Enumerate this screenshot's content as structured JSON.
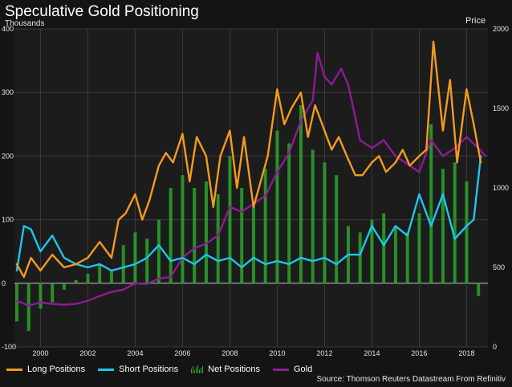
{
  "title": "Speculative Gold Positioning",
  "y_left_unit": "Thousands",
  "y_right_unit": "Price",
  "source": "Source: Thomson Reuters Datastream From Refinitiv",
  "colors": {
    "background": "#141414",
    "plot_bg": "#1c1c1c",
    "grid": "#3a3a3a",
    "long": "#f39b1f",
    "short": "#1fc6ee",
    "net": "#2aa52a",
    "gold": "#8e1b95"
  },
  "legend": {
    "long": "Long Positions",
    "short": "Short Positions",
    "net": "Net Positions",
    "gold": "Gold"
  },
  "chart_data": {
    "type": "line",
    "title": "Speculative Gold Positioning",
    "x_ticks": [
      "2000",
      "2002",
      "2004",
      "2006",
      "2008",
      "2010",
      "2012",
      "2014",
      "2016",
      "2018"
    ],
    "x_range": [
      1998.9,
      2018.9
    ],
    "y_left": {
      "label": "Thousands",
      "range": [
        -100,
        400
      ],
      "ticks": [
        "-100",
        "0",
        "100",
        "200",
        "300",
        "400"
      ]
    },
    "y_right": {
      "label": "Price",
      "range": [
        0,
        2000
      ],
      "ticks": [
        "0",
        "500",
        "1000",
        "1500",
        "2000"
      ]
    },
    "grid": true,
    "legend_position": "bottom",
    "series": [
      {
        "name": "Long Positions",
        "axis": "left",
        "type": "line",
        "x": [
          1999.0,
          1999.3,
          1999.6,
          2000.0,
          2000.5,
          2001.0,
          2001.5,
          2002.0,
          2002.5,
          2003.0,
          2003.3,
          2003.6,
          2004.0,
          2004.3,
          2004.6,
          2005.0,
          2005.3,
          2005.6,
          2006.0,
          2006.3,
          2006.6,
          2007.0,
          2007.3,
          2007.6,
          2008.0,
          2008.3,
          2008.6,
          2009.0,
          2009.3,
          2009.6,
          2010.0,
          2010.3,
          2010.6,
          2011.0,
          2011.3,
          2011.6,
          2012.0,
          2012.3,
          2012.6,
          2013.0,
          2013.3,
          2013.6,
          2014.0,
          2014.3,
          2014.6,
          2015.0,
          2015.3,
          2015.6,
          2016.0,
          2016.3,
          2016.6,
          2017.0,
          2017.3,
          2017.6,
          2018.0,
          2018.3,
          2018.6
        ],
        "y": [
          30,
          10,
          40,
          20,
          45,
          25,
          30,
          40,
          65,
          40,
          100,
          110,
          140,
          100,
          130,
          185,
          205,
          190,
          235,
          160,
          230,
          200,
          120,
          200,
          240,
          150,
          230,
          120,
          160,
          200,
          305,
          250,
          275,
          300,
          230,
          280,
          240,
          210,
          230,
          195,
          170,
          170,
          190,
          200,
          175,
          190,
          210,
          185,
          200,
          210,
          380,
          240,
          320,
          190,
          305,
          250,
          190
        ]
      },
      {
        "name": "Short Positions",
        "axis": "left",
        "type": "line",
        "x": [
          1999.0,
          1999.3,
          1999.6,
          2000.0,
          2000.5,
          2001.0,
          2001.5,
          2002.0,
          2002.5,
          2003.0,
          2003.5,
          2004.0,
          2004.5,
          2005.0,
          2005.5,
          2006.0,
          2006.5,
          2007.0,
          2007.5,
          2008.0,
          2008.5,
          2009.0,
          2009.5,
          2010.0,
          2010.5,
          2011.0,
          2011.5,
          2012.0,
          2012.5,
          2013.0,
          2013.5,
          2014.0,
          2014.5,
          2015.0,
          2015.5,
          2016.0,
          2016.5,
          2017.0,
          2017.5,
          2018.0,
          2018.3,
          2018.6
        ],
        "y": [
          20,
          90,
          85,
          50,
          75,
          40,
          30,
          25,
          30,
          20,
          25,
          30,
          40,
          60,
          35,
          40,
          30,
          45,
          35,
          40,
          25,
          40,
          30,
          35,
          30,
          40,
          35,
          40,
          30,
          45,
          45,
          90,
          60,
          90,
          75,
          140,
          90,
          140,
          70,
          90,
          100,
          200
        ]
      },
      {
        "name": "Net Positions",
        "axis": "left",
        "type": "bar",
        "x": [
          1999.0,
          1999.5,
          2000.0,
          2000.5,
          2001.0,
          2001.5,
          2002.0,
          2002.5,
          2003.0,
          2003.5,
          2004.0,
          2004.5,
          2005.0,
          2005.5,
          2006.0,
          2006.5,
          2007.0,
          2007.5,
          2008.0,
          2008.5,
          2009.0,
          2009.5,
          2010.0,
          2010.5,
          2011.0,
          2011.5,
          2012.0,
          2012.5,
          2013.0,
          2013.5,
          2014.0,
          2014.5,
          2015.0,
          2015.5,
          2016.0,
          2016.5,
          2017.0,
          2017.5,
          2018.0,
          2018.5
        ],
        "y": [
          -60,
          -75,
          -40,
          -30,
          -10,
          5,
          15,
          30,
          20,
          60,
          80,
          70,
          100,
          150,
          170,
          150,
          160,
          140,
          200,
          150,
          120,
          180,
          240,
          220,
          280,
          210,
          190,
          170,
          90,
          80,
          100,
          110,
          90,
          80,
          110,
          250,
          180,
          190,
          160,
          -20
        ]
      },
      {
        "name": "Gold",
        "axis": "right",
        "type": "line",
        "x": [
          1999.0,
          1999.5,
          2000.0,
          2000.5,
          2001.0,
          2001.5,
          2002.0,
          2002.5,
          2003.0,
          2003.5,
          2004.0,
          2004.5,
          2005.0,
          2005.5,
          2006.0,
          2006.5,
          2007.0,
          2007.5,
          2008.0,
          2008.5,
          2009.0,
          2009.5,
          2010.0,
          2010.5,
          2011.0,
          2011.5,
          2011.7,
          2012.0,
          2012.3,
          2012.7,
          2013.0,
          2013.5,
          2014.0,
          2014.5,
          2015.0,
          2015.5,
          2016.0,
          2016.5,
          2017.0,
          2017.5,
          2018.0,
          2018.5,
          2018.8
        ],
        "y": [
          290,
          260,
          280,
          270,
          265,
          270,
          290,
          320,
          345,
          360,
          400,
          395,
          430,
          440,
          560,
          620,
          650,
          700,
          880,
          850,
          900,
          950,
          1100,
          1220,
          1420,
          1550,
          1850,
          1700,
          1650,
          1750,
          1650,
          1300,
          1250,
          1300,
          1200,
          1150,
          1100,
          1300,
          1200,
          1250,
          1320,
          1250,
          1200
        ]
      }
    ]
  }
}
